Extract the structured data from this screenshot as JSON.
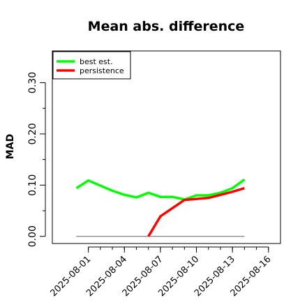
{
  "chart_data": {
    "type": "line",
    "title": "Mean abs. difference",
    "xlabel": "",
    "ylabel": "MAD",
    "x": [
      "2025-07-31",
      "2025-08-01",
      "2025-08-02",
      "2025-08-03",
      "2025-08-04",
      "2025-08-05",
      "2025-08-06",
      "2025-08-07",
      "2025-08-08",
      "2025-08-09",
      "2025-08-10",
      "2025-08-11",
      "2025-08-12",
      "2025-08-13",
      "2025-08-14"
    ],
    "xticks": [
      "2025-08-01",
      "2025-08-04",
      "2025-08-07",
      "2025-08-10",
      "2025-08-13",
      "2025-08-16"
    ],
    "xlim": [
      "2025-07-29",
      "2025-08-17"
    ],
    "yticks": [
      "0.00",
      "0.10",
      "0.20",
      "0.30"
    ],
    "ylim": [
      -0.014,
      0.362
    ],
    "baseline": {
      "value": 0.0,
      "x_from": "2025-07-31",
      "x_to": "2025-08-14",
      "color": "#808080"
    },
    "series": [
      {
        "name": "best est.",
        "color": "#00ff00",
        "values": [
          0.094,
          0.109,
          0.099,
          0.089,
          0.081,
          0.076,
          0.085,
          0.077,
          0.077,
          0.072,
          0.08,
          0.08,
          0.085,
          0.094,
          0.111
        ]
      },
      {
        "name": "persistence",
        "color": "#ff0000",
        "values": [
          null,
          null,
          null,
          null,
          null,
          null,
          0.0,
          0.039,
          0.055,
          0.071,
          0.073,
          0.075,
          0.081,
          0.087,
          0.094
        ]
      }
    ],
    "legend": {
      "position": "top-left"
    },
    "grid": false
  }
}
